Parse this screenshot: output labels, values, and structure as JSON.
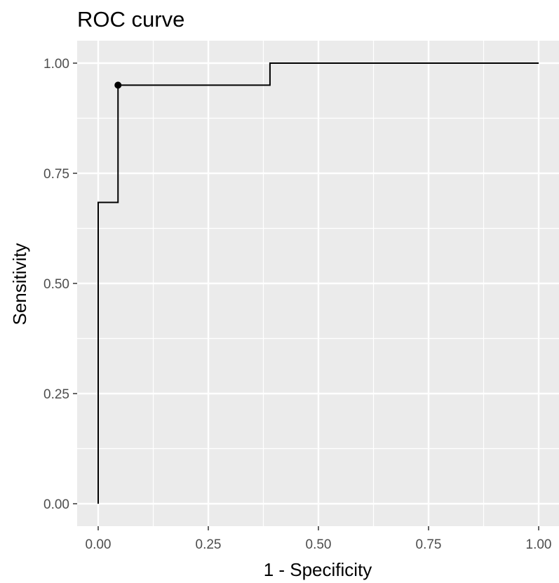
{
  "chart_data": {
    "type": "line",
    "title": "ROC curve",
    "xlabel": "1 - Specificity",
    "ylabel": "Sensitivity",
    "xlim": [
      0,
      1
    ],
    "ylim": [
      0,
      1
    ],
    "x_ticks": [
      0,
      0.25,
      0.5,
      0.75,
      1
    ],
    "x_tick_labels": [
      "0.00",
      "0.25",
      "0.50",
      "0.75",
      "1.00"
    ],
    "y_ticks": [
      0,
      0.25,
      0.5,
      0.75,
      1
    ],
    "y_tick_labels": [
      "0.00",
      "0.25",
      "0.50",
      "0.75",
      "1.00"
    ],
    "grid": true,
    "line_color": "#000000",
    "panel_background": "#ebebeb",
    "gridline_color": "#ffffff",
    "series": [
      {
        "step": "hv",
        "x": [
          0,
          0,
          0.045,
          0.045,
          0.39,
          0.39,
          1
        ],
        "y": [
          0,
          0.684,
          0.684,
          0.95,
          0.95,
          1,
          1
        ]
      }
    ],
    "highlighted_point": {
      "x": 0.045,
      "y": 0.95
    }
  }
}
